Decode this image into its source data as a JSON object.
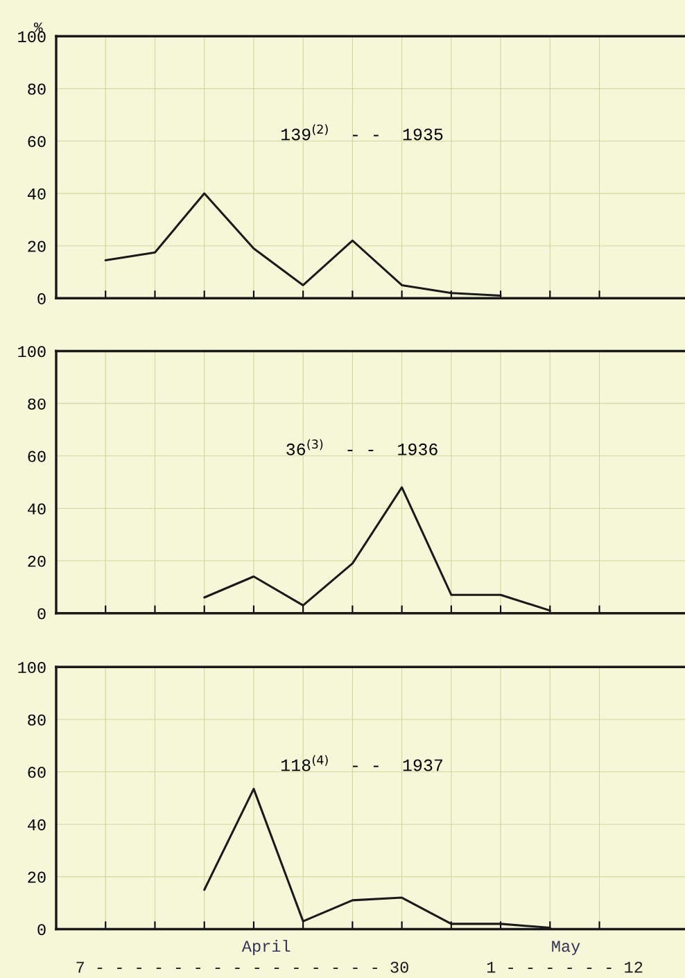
{
  "chart_data": [
    {
      "type": "line",
      "title": "139$^{(2)}$  - -  1935",
      "ylabel": "%",
      "categories": [
        null,
        null,
        null,
        null,
        null,
        null,
        null,
        null,
        null,
        null,
        null
      ],
      "ylim": [
        0,
        100
      ],
      "yticks": [
        0,
        20,
        40,
        60,
        80,
        100
      ],
      "grid": true,
      "tick_labels": "y",
      "series": [
        {
          "color": "#1a1a1a",
          "values": [
            14.5,
            17.5,
            40,
            19,
            5,
            22,
            5,
            2,
            1,
            null,
            null
          ]
        }
      ]
    },
    {
      "type": "line",
      "title": "36$^{(3)}$  - -  1936",
      "categories": [
        null,
        null,
        null,
        null,
        null,
        null,
        null,
        null,
        null,
        null,
        null
      ],
      "ylim": [
        0,
        100
      ],
      "yticks": [
        0,
        20,
        40,
        60,
        80,
        100
      ],
      "grid": true,
      "tick_labels": "y",
      "series": [
        {
          "color": "#1a1a1a",
          "values": [
            null,
            null,
            6,
            14,
            3,
            19,
            48,
            7,
            7,
            1,
            null
          ]
        }
      ]
    },
    {
      "type": "line",
      "title": "118$^{(4)}$  - -  1937",
      "categories": [
        null,
        null,
        null,
        null,
        null,
        null,
        null,
        null,
        null,
        null,
        null
      ],
      "ylim": [
        0,
        100
      ],
      "yticks": [
        0,
        20,
        40,
        60,
        80,
        100
      ],
      "grid": true,
      "tick_labels": "y",
      "annotations": [
        "April",
        "May",
        "7 - - - - - - - - - - - - - - - 30",
        "1 - - - - - - 12"
      ],
      "series": [
        {
          "color": "#1a1a1a",
          "values": [
            null,
            null,
            15,
            53.5,
            3,
            11,
            12,
            2,
            2,
            0.5,
            null
          ]
        }
      ]
    }
  ]
}
